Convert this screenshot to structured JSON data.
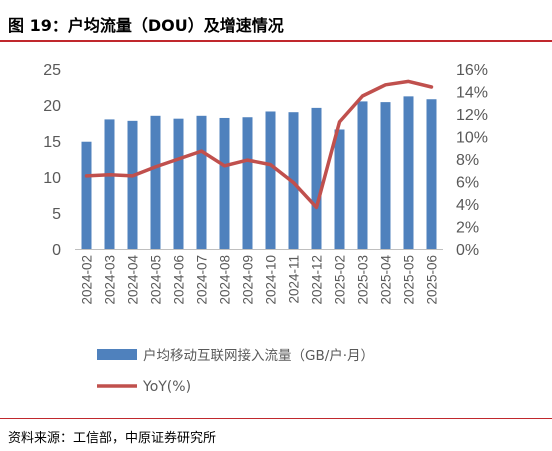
{
  "header": {
    "title": "图 19：户均流量（DOU）及增速情况"
  },
  "footer": {
    "source": "资料来源：工信部，中原证券研究所"
  },
  "colors": {
    "bar": "#4f81bd",
    "line": "#c0504d",
    "accent": "#c0282d",
    "axis": "#595959"
  },
  "chart_data": {
    "type": "bar",
    "categories": [
      "2024-02",
      "2024-03",
      "2024-04",
      "2024-05",
      "2024-06",
      "2024-07",
      "2024-08",
      "2024-09",
      "2024-10",
      "2024-11",
      "2024-12",
      "2025-02",
      "2025-03",
      "2025-04",
      "2025-05",
      "2025-06"
    ],
    "series": [
      {
        "name": "户均移动互联网接入流量（GB/户·月）",
        "type": "bar",
        "axis": "left",
        "values": [
          14.9,
          18.0,
          17.8,
          18.5,
          18.1,
          18.5,
          18.2,
          18.3,
          19.1,
          19.0,
          19.6,
          16.6,
          20.5,
          20.4,
          21.2,
          20.8
        ]
      },
      {
        "name": "YoY(%)",
        "type": "line",
        "axis": "right",
        "values": [
          6.5,
          6.6,
          6.5,
          7.3,
          8.0,
          8.7,
          7.4,
          7.9,
          7.5,
          5.9,
          3.7,
          11.3,
          13.6,
          14.6,
          14.9,
          14.4
        ]
      }
    ],
    "y_left": {
      "range": [
        0,
        25
      ],
      "ticks": [
        "0",
        "5",
        "10",
        "15",
        "20",
        "25"
      ]
    },
    "y_right": {
      "range": [
        0,
        16
      ],
      "ticks": [
        "0%",
        "2%",
        "4%",
        "6%",
        "8%",
        "10%",
        "12%",
        "14%",
        "16%"
      ]
    },
    "grid": false,
    "legend": "bottom"
  }
}
